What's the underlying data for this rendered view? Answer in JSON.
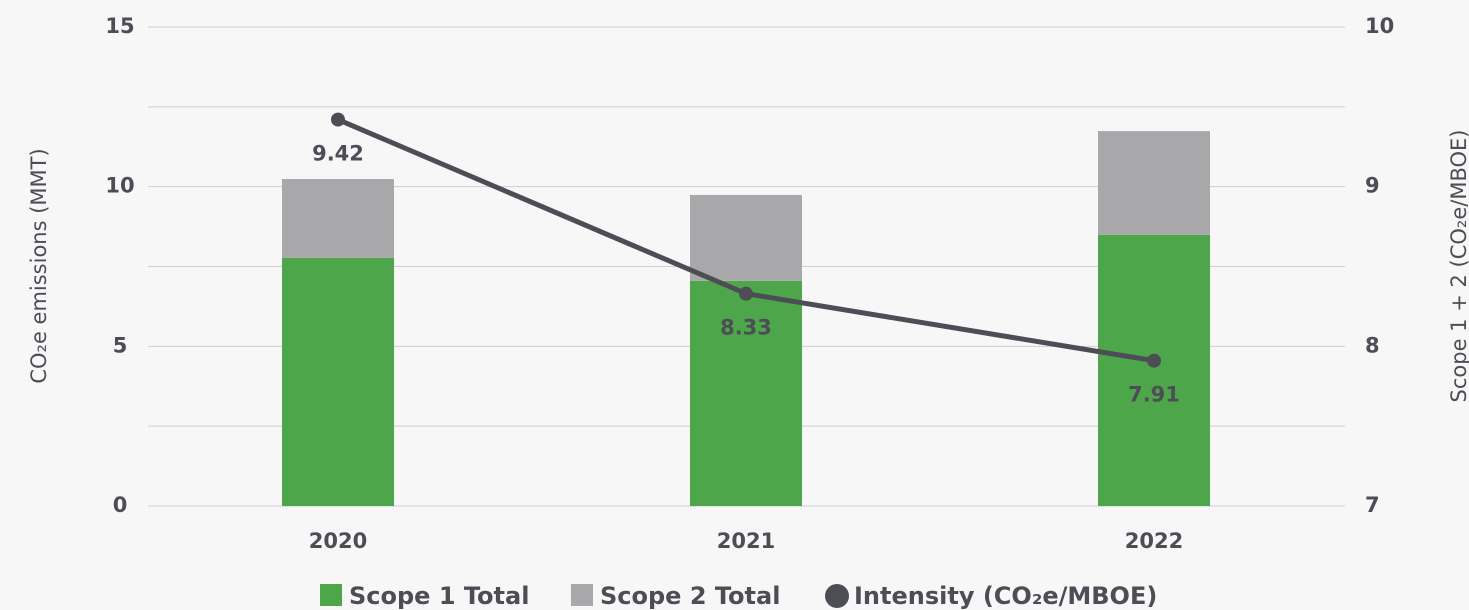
{
  "chart_data": {
    "type": "bar",
    "categories": [
      "2020",
      "2021",
      "2022"
    ],
    "series": [
      {
        "name": "Scope 1 Total",
        "color": "#4ea64a",
        "values": [
          7.77,
          7.05,
          8.49
        ],
        "stack": true
      },
      {
        "name": "Scope 2 Total",
        "color": "#a8a8aa",
        "values": [
          2.47,
          2.69,
          3.25
        ],
        "stack": true
      },
      {
        "name": "Intensity (CO₂e/MBOE)",
        "color": "#4d4d55",
        "values": [
          9.42,
          8.33,
          7.91
        ],
        "type": "line",
        "axis": "y2",
        "data_labels": true
      }
    ],
    "ylabel": "CO₂e emissions (MMT)",
    "y2label": "Scope 1 + 2 (CO₂e/MBOE)",
    "ylim": [
      0,
      15
    ],
    "yticks": [
      0,
      5,
      10,
      15
    ],
    "yminor": [
      2.5,
      7.5,
      12.5
    ],
    "y2lim": [
      7,
      10
    ],
    "y2ticks": [
      7,
      8,
      9,
      10
    ],
    "grid": true,
    "legend": "bottom"
  }
}
